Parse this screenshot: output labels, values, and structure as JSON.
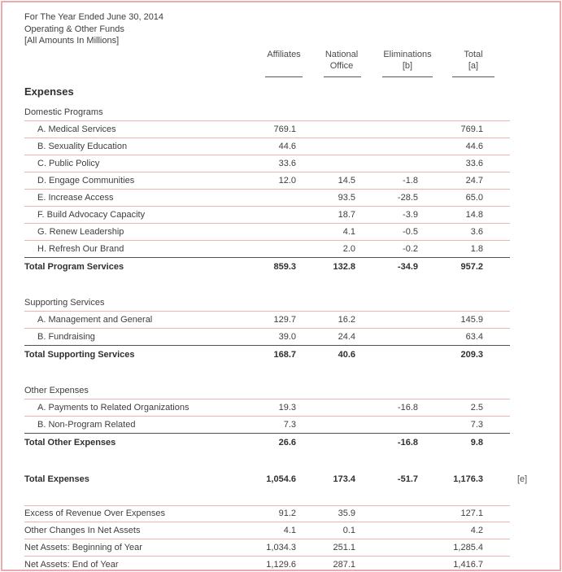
{
  "intro": {
    "line1": "For The Year Ended June 30, 2014",
    "line2": "Operating & Other Funds",
    "line3": "[All Amounts In Millions]"
  },
  "column_headers": [
    {
      "line1": "Affiliates",
      "line2": ""
    },
    {
      "line1": "National",
      "line2": "Office"
    },
    {
      "line1": "Eliminations",
      "line2": "[b]"
    },
    {
      "line1": "Total",
      "line2": "[a]"
    }
  ],
  "expenses_heading": "Expenses",
  "colors": {
    "page_border": "#e8acac",
    "row_line": "#f0b2b2",
    "strong_line": "#4e5357",
    "header_rule": "#55595c",
    "text": "#3e3e3e"
  },
  "table_rows": [
    {
      "type": "group",
      "name": "group-domestic-programs",
      "label": "Domestic Programs",
      "line": "pink"
    },
    {
      "type": "item",
      "name": "row-medical-services",
      "label": "A. Medical Services",
      "values": [
        "769.1",
        "",
        "",
        "769.1"
      ],
      "line": "pink"
    },
    {
      "type": "item",
      "name": "row-sexuality-education",
      "label": "B. Sexuality Education",
      "values": [
        "44.6",
        "",
        "",
        "44.6"
      ],
      "line": "pink"
    },
    {
      "type": "item",
      "name": "row-public-policy",
      "label": "C. Public Policy",
      "values": [
        "33.6",
        "",
        "",
        "33.6"
      ],
      "line": "pink"
    },
    {
      "type": "item",
      "name": "row-engage-communities",
      "label": "D. Engage Communities",
      "values": [
        "12.0",
        "14.5",
        "-1.8",
        "24.7"
      ],
      "line": "pink"
    },
    {
      "type": "item",
      "name": "row-increase-access",
      "label": "E. Increase Access",
      "values": [
        "",
        "93.5",
        "-28.5",
        "65.0"
      ],
      "line": "pink"
    },
    {
      "type": "item",
      "name": "row-build-advocacy-capacity",
      "label": "F. Build Advocacy Capacity",
      "values": [
        "",
        "18.7",
        "-3.9",
        "14.8"
      ],
      "line": "pink"
    },
    {
      "type": "item",
      "name": "row-renew-leadership",
      "label": "G. Renew Leadership",
      "values": [
        "",
        "4.1",
        "-0.5",
        "3.6"
      ],
      "line": "pink"
    },
    {
      "type": "item",
      "name": "row-refresh-our-brand",
      "label": "H. Refresh Our Brand",
      "values": [
        "",
        "2.0",
        "-0.2",
        "1.8"
      ],
      "line": "dark"
    },
    {
      "type": "total",
      "name": "row-total-program-services",
      "label": "Total Program Services",
      "values": [
        "859.3",
        "132.8",
        "-34.9",
        "957.2"
      ]
    },
    {
      "type": "spacer",
      "h": 24
    },
    {
      "type": "group",
      "name": "group-supporting-services",
      "label": "Supporting Services",
      "line": "pink"
    },
    {
      "type": "item",
      "name": "row-management-and-general",
      "label": "A. Management and General",
      "values": [
        "129.7",
        "16.2",
        "",
        "145.9"
      ],
      "line": "pink"
    },
    {
      "type": "item",
      "name": "row-fundraising",
      "label": "B. Fundraising",
      "values": [
        "39.0",
        "24.4",
        "",
        "63.4"
      ],
      "line": "dark"
    },
    {
      "type": "total",
      "name": "row-total-supporting-services",
      "label": "Total Supporting Services",
      "values": [
        "168.7",
        "40.6",
        "",
        "209.3"
      ]
    },
    {
      "type": "spacer",
      "h": 24
    },
    {
      "type": "group",
      "name": "group-other-expenses",
      "label": "Other Expenses",
      "line": "pink"
    },
    {
      "type": "item",
      "name": "row-payments-to-related-organizations",
      "label": "A. Payments to Related Organizations",
      "values": [
        "19.3",
        "",
        "-16.8",
        "2.5"
      ],
      "line": "pink"
    },
    {
      "type": "item",
      "name": "row-non-program-related",
      "label": "B. Non-Program Related",
      "values": [
        "7.3",
        "",
        "",
        "7.3"
      ],
      "line": "dark"
    },
    {
      "type": "total",
      "name": "row-total-other-expenses",
      "label": "Total Other Expenses",
      "values": [
        "26.6",
        "",
        "-16.8",
        "9.8"
      ]
    },
    {
      "type": "spacer",
      "h": 23
    },
    {
      "type": "grand",
      "name": "row-total-expenses",
      "label": "Total Expenses",
      "values": [
        "1,054.6",
        "173.4",
        "-51.7",
        "1,176.3"
      ],
      "note": "[e]"
    },
    {
      "type": "spacer",
      "h": 21
    },
    {
      "type": "bottom",
      "name": "row-excess-of-revenue",
      "label": "Excess of Revenue Over Expenses",
      "values": [
        "91.2",
        "35.9",
        "",
        "127.1"
      ],
      "line": "pink",
      "topLine": true
    },
    {
      "type": "bottom",
      "name": "row-other-changes-net-assets",
      "label": "Other Changes In Net Assets",
      "values": [
        "4.1",
        "0.1",
        "",
        "4.2"
      ],
      "line": "pink"
    },
    {
      "type": "bottom",
      "name": "row-net-assets-beginning",
      "label": "Net Assets: Beginning of Year",
      "values": [
        "1,034.3",
        "251.1",
        "",
        "1,285.4"
      ],
      "line": "pink"
    },
    {
      "type": "bottom",
      "name": "row-net-assets-end",
      "label": "Net Assets: End of Year",
      "values": [
        "1,129.6",
        "287.1",
        "",
        "1,416.7"
      ],
      "line": "pink"
    }
  ]
}
